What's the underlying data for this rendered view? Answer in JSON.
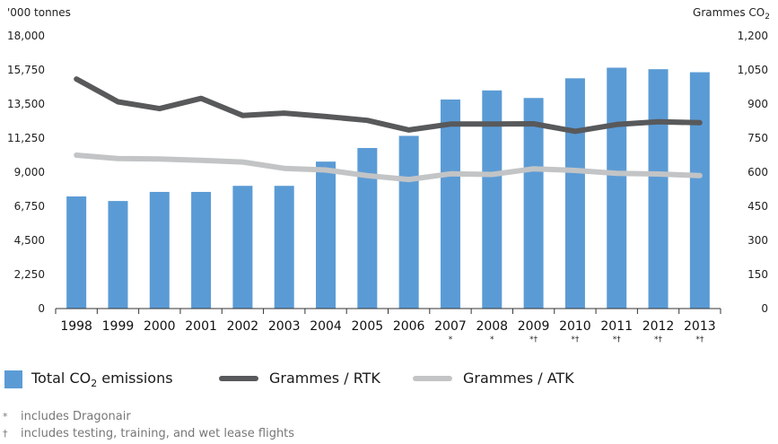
{
  "chart_data": {
    "type": "bar",
    "left_axis_title": "'000 tonnes",
    "right_axis_title": "Grammes CO",
    "right_axis_title_sub": "2",
    "left_ylim": [
      0,
      18000
    ],
    "left_ticks": [
      "0",
      "2,250",
      "4,500",
      "6,750",
      "9,000",
      "11,250",
      "13,500",
      "15,750",
      "18,000"
    ],
    "right_ylim": [
      0,
      1200
    ],
    "right_ticks": [
      "0",
      "150",
      "300",
      "450",
      "600",
      "750",
      "900",
      "1,050",
      "1,200"
    ],
    "categories": [
      "1998",
      "1999",
      "2000",
      "2001",
      "2002",
      "2003",
      "2004",
      "2005",
      "2006",
      "2007",
      "2008",
      "2009",
      "2010",
      "2011",
      "2012",
      "2013"
    ],
    "category_marks": [
      "",
      "",
      "",
      "",
      "",
      "",
      "",
      "",
      "",
      "*",
      "*",
      "*†",
      "*†",
      "*†",
      "*†",
      "*†"
    ],
    "bars": {
      "name": "Total CO",
      "name_sub": "2",
      "name_suffix": " emissions",
      "color": "#5b9bd5",
      "values": [
        7400,
        7100,
        7700,
        7700,
        8100,
        8100,
        9700,
        10600,
        11400,
        13800,
        14400,
        13900,
        15200,
        15900,
        15800,
        15600
      ]
    },
    "lines": [
      {
        "name": "Grammes / RTK",
        "color": "#58595b",
        "values": [
          1010,
          910,
          880,
          925,
          850,
          860,
          845,
          828,
          786,
          812,
          812,
          813,
          780,
          810,
          822,
          818
        ]
      },
      {
        "name": "Grammes / ATK",
        "color": "#c2c4c6",
        "values": [
          675,
          660,
          658,
          652,
          645,
          617,
          610,
          585,
          568,
          593,
          590,
          615,
          608,
          595,
          592,
          585
        ]
      }
    ],
    "grid": false,
    "legend_position": "bottom"
  },
  "footnotes": [
    {
      "symbol": "*",
      "text": "includes Dragonair"
    },
    {
      "symbol": "†",
      "text": "includes testing, training, and wet lease flights"
    }
  ]
}
